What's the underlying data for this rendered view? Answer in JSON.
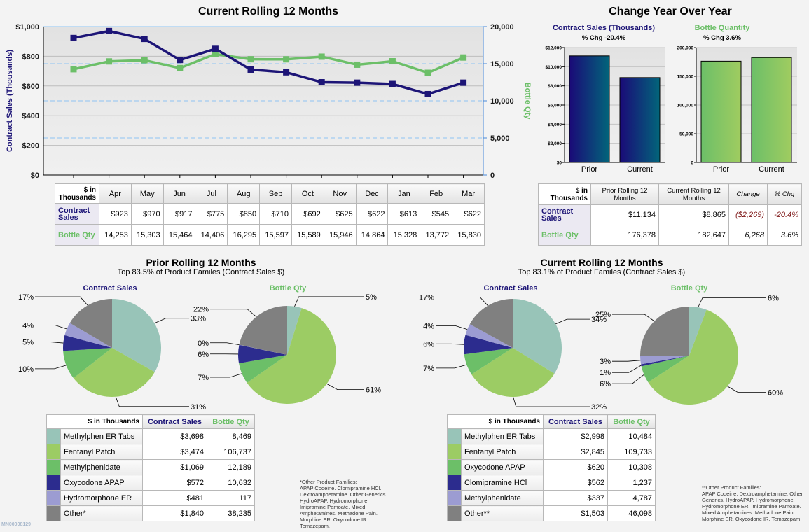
{
  "colors": {
    "contract_sales": "#1d1577",
    "bottle_qty": "#6cbf68",
    "slices": [
      "#98c4b8",
      "#9ccc64",
      "#6cbf68",
      "#2c2c8e",
      "#9c9cd2",
      "#808080"
    ]
  },
  "header": {
    "left_title": "Current Rolling 12 Months",
    "right_title": "Change Year Over Year"
  },
  "bottom": {
    "prior": {
      "title": "Prior Rolling 12 Months",
      "subtitle": "Top 83.5% of Product Familes (Contract Sales $)"
    },
    "current": {
      "title": "Current Rolling 12 Months",
      "subtitle": "Top 83.1% of Product Familes (Contract Sales $)"
    }
  },
  "chart_data": [
    {
      "type": "line",
      "title": "Current Rolling 12 Months",
      "categories": [
        "Apr",
        "May",
        "Jun",
        "Jul",
        "Aug",
        "Sep",
        "Oct",
        "Nov",
        "Dec",
        "Jan",
        "Feb",
        "Mar"
      ],
      "ylabel": "Contract Sales (Thousands)",
      "y2label": "Bottle Qty",
      "ylim": [
        0,
        1000
      ],
      "y2lim": [
        0,
        20000
      ],
      "yticks": [
        "$0",
        "$200",
        "$400",
        "$600",
        "$800",
        "$1,000"
      ],
      "y2ticks": [
        "0",
        "5,000",
        "10,000",
        "15,000",
        "20,000"
      ],
      "grid": true,
      "series": [
        {
          "name": "Contract Sales",
          "axis": "left",
          "values": [
            923,
            970,
            917,
            775,
            850,
            710,
            692,
            625,
            622,
            613,
            545,
            622
          ]
        },
        {
          "name": "Bottle Qty",
          "axis": "right",
          "values": [
            14253,
            15303,
            15464,
            14406,
            16295,
            15597,
            15589,
            15946,
            14864,
            15328,
            13772,
            15830
          ]
        }
      ]
    },
    {
      "type": "bar",
      "title": "Contract Sales (Thousands)",
      "subtitle": "% Chg -20.4%",
      "categories": [
        "Prior",
        "Current"
      ],
      "values": [
        11134,
        8865
      ],
      "ylim": [
        0,
        12000
      ],
      "yticks": [
        "$0",
        "$2,000",
        "$4,000",
        "$6,000",
        "$8,000",
        "$10,000",
        "$12,000"
      ]
    },
    {
      "type": "bar",
      "title": "Bottle Quantity",
      "subtitle": "% Chg 3.6%",
      "categories": [
        "Prior",
        "Current"
      ],
      "values": [
        176378,
        182647
      ],
      "ylim": [
        0,
        200000
      ],
      "yticks": [
        "0",
        "50,000",
        "100,000",
        "150,000",
        "200,000"
      ]
    },
    {
      "type": "pie",
      "title": "Contract Sales",
      "group": "prior",
      "values": [
        3698,
        3474,
        1069,
        572,
        481,
        1840
      ],
      "labels": [
        "33%",
        "31%",
        "10%",
        "5%",
        "4%",
        "17%"
      ]
    },
    {
      "type": "pie",
      "title": "Bottle Qty",
      "group": "prior",
      "values": [
        8469,
        106737,
        12189,
        10632,
        117,
        38235
      ],
      "labels": [
        "5%",
        "61%",
        "7%",
        "6%",
        "0%",
        "22%"
      ]
    },
    {
      "type": "pie",
      "title": "Contract Sales",
      "group": "current",
      "values": [
        2998,
        2845,
        620,
        562,
        337,
        1503
      ],
      "labels": [
        "34%",
        "32%",
        "7%",
        "6%",
        "4%",
        "17%"
      ]
    },
    {
      "type": "pie",
      "title": "Bottle Qty",
      "group": "current",
      "values": [
        10484,
        109733,
        10308,
        1237,
        4787,
        46098
      ],
      "labels": [
        "6%",
        "60%",
        "6%",
        "1%",
        "3%",
        "25%"
      ]
    }
  ],
  "monthly_table": {
    "corner": "$ in Thousands",
    "months": [
      "Apr",
      "May",
      "Jun",
      "Jul",
      "Aug",
      "Sep",
      "Oct",
      "Nov",
      "Dec",
      "Jan",
      "Feb",
      "Mar"
    ],
    "rows": [
      {
        "label": "Contract Sales",
        "values": [
          "$923",
          "$970",
          "$917",
          "$775",
          "$850",
          "$710",
          "$692",
          "$625",
          "$622",
          "$613",
          "$545",
          "$622"
        ]
      },
      {
        "label": "Bottle Qty",
        "values": [
          "14,253",
          "15,303",
          "15,464",
          "14,406",
          "16,295",
          "15,597",
          "15,589",
          "15,946",
          "14,864",
          "15,328",
          "13,772",
          "15,830"
        ]
      }
    ]
  },
  "yoy_table": {
    "headers": [
      "$ in Thousands",
      "Prior Rolling 12 Months",
      "Current Rolling 12 Months",
      "Change",
      "% Chg"
    ],
    "rows": [
      {
        "label": "Contract Sales",
        "values": [
          "$11,134",
          "$8,865",
          "($2,269)",
          "-20.4%"
        ]
      },
      {
        "label": "Bottle Qty",
        "values": [
          "176,378",
          "182,647",
          "6,268",
          "3.6%"
        ]
      }
    ]
  },
  "prior_table": {
    "headers": [
      "$ in Thousands",
      "Contract Sales",
      "Bottle Qty"
    ],
    "rows": [
      {
        "name": "Methylphen ER Tabs",
        "cs": "$3,698",
        "bq": "8,469"
      },
      {
        "name": "Fentanyl Patch",
        "cs": "$3,474",
        "bq": "106,737"
      },
      {
        "name": "Methylphenidate",
        "cs": "$1,069",
        "bq": "12,189"
      },
      {
        "name": "Oxycodone APAP",
        "cs": "$572",
        "bq": "10,632"
      },
      {
        "name": "Hydromorphone ER",
        "cs": "$481",
        "bq": "117"
      },
      {
        "name": "Other*",
        "cs": "$1,840",
        "bq": "38,235"
      }
    ],
    "note_title": "*Other Product Families:",
    "note": "APAP Codeine. Clomipramine HCl. Dextroamphetamine. Other Generics. HydroAPAP. Hydromorphone. Imipramine Pamoate. Mixed Amphetamines. Methadone Pain. Morphine ER. Oxycodone IR. Temazepam."
  },
  "current_table": {
    "headers": [
      "$ in Thousands",
      "Contract Sales",
      "Bottle Qty"
    ],
    "rows": [
      {
        "name": "Methylphen ER Tabs",
        "cs": "$2,998",
        "bq": "10,484"
      },
      {
        "name": "Fentanyl Patch",
        "cs": "$2,845",
        "bq": "109,733"
      },
      {
        "name": "Oxycodone APAP",
        "cs": "$620",
        "bq": "10,308"
      },
      {
        "name": "Clomipramine HCl",
        "cs": "$562",
        "bq": "1,237"
      },
      {
        "name": "Methylphenidate",
        "cs": "$337",
        "bq": "4,787"
      },
      {
        "name": "Other**",
        "cs": "$1,503",
        "bq": "46,098"
      }
    ],
    "note_title": "**Other Product Families:",
    "note": "APAP Codeine. Dextroamphetamine. Other Generics. HydroAPAP. Hydromorphone. Hydromorphone ER. Imipramine Pamoate. Mixed Amphetamines. Methadone Pain. Morphine ER. Oxycodone IR. Temazepam."
  },
  "footer_id": "MN00008129"
}
